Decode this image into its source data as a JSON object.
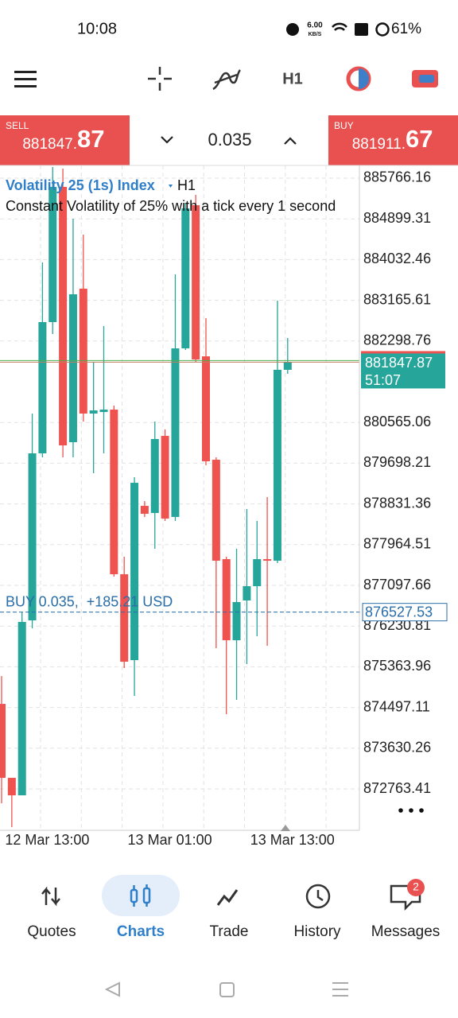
{
  "status_bar": {
    "time": "10:08",
    "net_speed": "6.00",
    "net_unit": "KB/S",
    "battery": "61%"
  },
  "toolbar": {
    "timeframe": "H1"
  },
  "trade_panel": {
    "sell": {
      "label": "SELL",
      "price": "881847.",
      "price_tail": "87"
    },
    "volume": "0.035",
    "buy": {
      "label": "BUY",
      "price": "881911.",
      "price_tail": "67"
    }
  },
  "chart_data": {
    "type": "candlestick",
    "title": "Volatility 25 (1s) Index",
    "timeframe": "H1",
    "subtitle": "Constant Volatility of 25% with a tick every 1 second",
    "categories": [
      null,
      null,
      null,
      null,
      "12 Mar 13:00",
      null,
      null,
      null,
      null,
      null,
      null,
      null,
      null,
      null,
      null,
      null,
      "13 Mar 01:00",
      null,
      null,
      null,
      null,
      null,
      null,
      null,
      null,
      null,
      null,
      null,
      "13 Mar 13:00"
    ],
    "open": [
      874574,
      873000,
      872628,
      876352,
      879908,
      882702,
      885580,
      880145,
      883413,
      880754,
      880788,
      880839,
      877334,
      875506,
      878790,
      878638,
      880280,
      878553,
      882143,
      885190,
      881973,
      879772,
      877656,
      875929,
      876776,
      877080,
      877656,
      877622,
      881686
    ],
    "high": [
      875167,
      873000,
      876522,
      880754,
      883971,
      886003,
      885969,
      884903,
      884564,
      881855,
      882617,
      880924,
      877707,
      879400,
      878892,
      880585,
      880416,
      883717,
      885241,
      885410,
      882786,
      879823,
      877707,
      877876,
      878723,
      878469,
      878977,
      883159,
      882363
    ],
    "low": [
      872458,
      871950,
      872628,
      876183,
      879823,
      882448,
      879823,
      879823,
      880585,
      879485,
      879908,
      877284,
      875336,
      874744,
      878553,
      877876,
      878469,
      878469,
      882109,
      881855,
      879654,
      875760,
      874354,
      874659,
      875421,
      876014,
      875810,
      877571,
      881601
    ],
    "close": [
      873000,
      872628,
      876319,
      879908,
      882702,
      885580,
      880077,
      883294,
      880754,
      880822,
      880839,
      877334,
      875472,
      879281,
      878621,
      880213,
      878519,
      882143,
      885123,
      881906,
      879739,
      877622,
      875929,
      876742,
      877080,
      877656,
      877622,
      881686,
      881847.87
    ],
    "up_color": "#26a69a",
    "down_color": "#ef5350",
    "ylim": [
      871917,
      886037
    ],
    "yticks": [
      885766.16,
      884899.31,
      884032.46,
      883165.61,
      882298.76,
      880565.06,
      879698.21,
      878831.36,
      877964.51,
      877097.66,
      876230.81,
      875363.96,
      874497.11,
      873630.26,
      872763.41
    ],
    "grid": true,
    "price_line": {
      "value": 881847.87,
      "timer": "51:07"
    },
    "position_line": {
      "label": "BUY 0.035,  +185.21 USD",
      "value": 876527.53
    }
  },
  "nav": {
    "items": [
      {
        "label": "Quotes"
      },
      {
        "label": "Charts"
      },
      {
        "label": "Trade"
      },
      {
        "label": "History"
      },
      {
        "label": "Messages"
      }
    ],
    "badge": "2"
  }
}
